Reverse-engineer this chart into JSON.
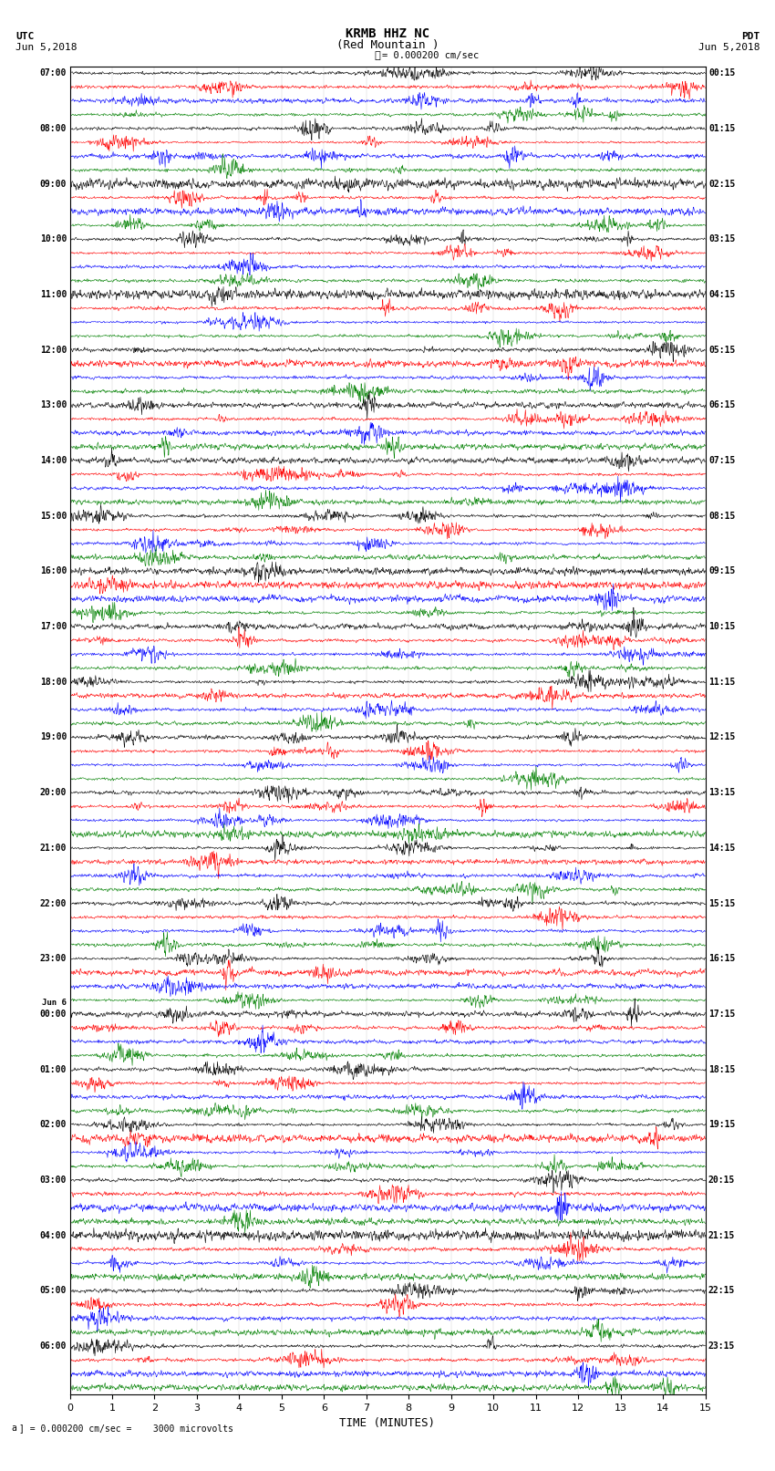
{
  "title_line1": "KRMB HHZ NC",
  "title_line2": "(Red Mountain )",
  "scale_label": "= 0.000200 cm/sec",
  "utc_label": "UTC",
  "utc_date": "Jun 5,2018",
  "pdt_label": "PDT",
  "pdt_date": "Jun 5,2018",
  "xlabel": "TIME (MINUTES)",
  "footer": "= 0.000200 cm/sec =    3000 microvolts",
  "footer_a": "a",
  "bg_color": "#ffffff",
  "trace_colors": [
    "black",
    "red",
    "blue",
    "green"
  ],
  "left_times": [
    "07:00",
    "08:00",
    "09:00",
    "10:00",
    "11:00",
    "12:00",
    "13:00",
    "14:00",
    "15:00",
    "16:00",
    "17:00",
    "18:00",
    "19:00",
    "20:00",
    "21:00",
    "22:00",
    "23:00",
    "Jun 6\n00:00",
    "01:00",
    "02:00",
    "03:00",
    "04:00",
    "05:00",
    "06:00"
  ],
  "right_times": [
    "00:15",
    "01:15",
    "02:15",
    "03:15",
    "04:15",
    "05:15",
    "06:15",
    "07:15",
    "08:15",
    "09:15",
    "10:15",
    "11:15",
    "12:15",
    "13:15",
    "14:15",
    "15:15",
    "16:15",
    "17:15",
    "18:15",
    "19:15",
    "20:15",
    "21:15",
    "22:15",
    "23:15"
  ],
  "n_hours": 24,
  "traces_per_hour": 4,
  "xmin": 0,
  "xmax": 15,
  "xticks": [
    0,
    1,
    2,
    3,
    4,
    5,
    6,
    7,
    8,
    9,
    10,
    11,
    12,
    13,
    14,
    15
  ],
  "figwidth": 8.5,
  "figheight": 16.13,
  "dpi": 100,
  "noise_seed": 42
}
